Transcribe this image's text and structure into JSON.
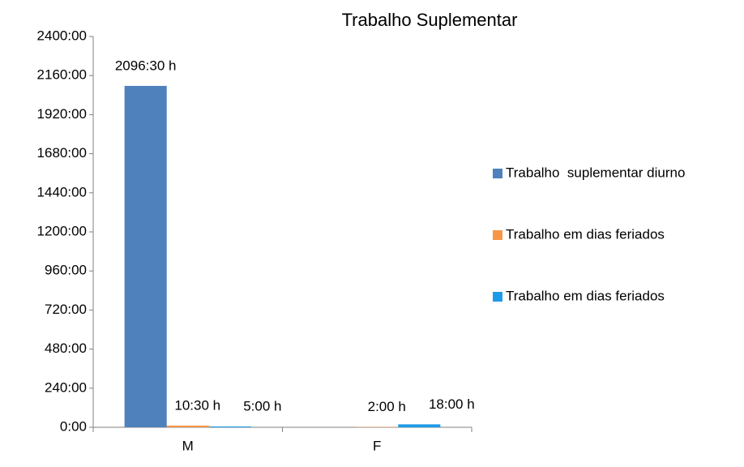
{
  "chart_data": {
    "type": "bar",
    "title": "Trabalho Suplementar",
    "categories": [
      "M",
      "F"
    ],
    "series": [
      {
        "name": "Trabalho  suplementar diurno",
        "color": "#4f81bd",
        "values": [
          2096.5,
          null
        ],
        "value_labels": [
          "2096:30 h",
          null
        ]
      },
      {
        "name": "Trabalho em dias feriados",
        "color": "#f79646",
        "values": [
          10.5,
          2
        ],
        "value_labels": [
          "10:30 h",
          "2:00 h"
        ]
      },
      {
        "name": "Trabalho em dias feriados",
        "color": "#1e9be8",
        "values": [
          5,
          18
        ],
        "value_labels": [
          "5:00 h",
          "18:00 h"
        ]
      }
    ],
    "ylim": [
      0,
      2400
    ],
    "yticks": [
      {
        "value": 0,
        "label": "0:00"
      },
      {
        "value": 240,
        "label": "240:00"
      },
      {
        "value": 480,
        "label": "480:00"
      },
      {
        "value": 720,
        "label": "720:00"
      },
      {
        "value": 960,
        "label": "960:00"
      },
      {
        "value": 1200,
        "label": "1200:00"
      },
      {
        "value": 1440,
        "label": "1440:00"
      },
      {
        "value": 1680,
        "label": "1680:00"
      },
      {
        "value": 1920,
        "label": "1920:00"
      },
      {
        "value": 2160,
        "label": "2160:00"
      },
      {
        "value": 2400,
        "label": "2400:00"
      }
    ],
    "legend": "right"
  }
}
